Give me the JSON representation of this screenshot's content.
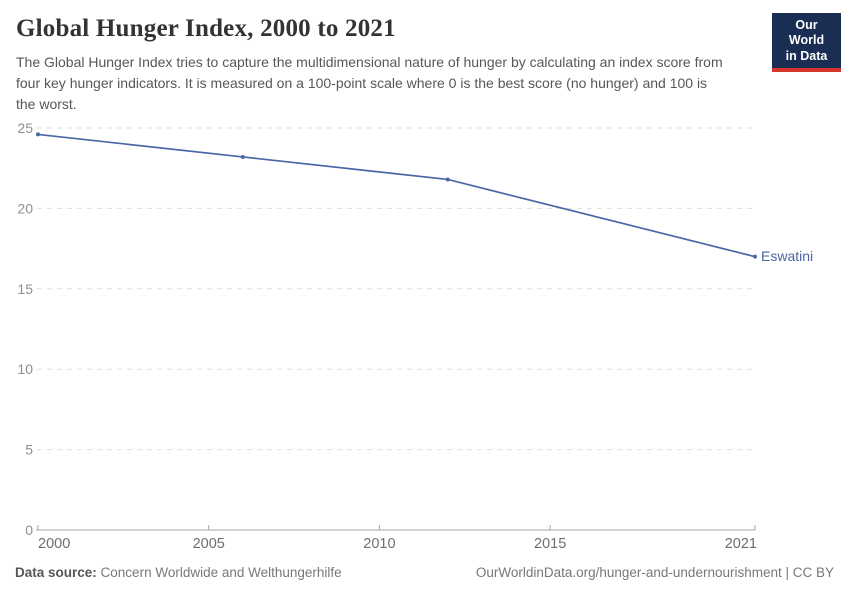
{
  "header": {
    "title": "Global Hunger Index, 2000 to 2021",
    "subtitle": "The Global Hunger Index tries to capture the multidimensional nature of hunger by calculating an index score from four key hunger indicators. It is measured on a 100-point scale where 0 is the best score (no hunger) and 100 is the worst."
  },
  "logo": {
    "line1": "Our World",
    "line2": "in Data",
    "bg_color": "#1a2d52",
    "bar_color": "#d8352c"
  },
  "footer": {
    "source_label": "Data source:",
    "source_value": "Concern Worldwide and Welthungerhilfe",
    "attribution": "OurWorldinData.org/hunger-and-undernourishment | CC BY"
  },
  "chart_data": {
    "type": "line",
    "title": "Global Hunger Index, 2000 to 2021",
    "xlabel": "",
    "ylabel": "",
    "xlim": [
      2000,
      2021
    ],
    "ylim": [
      0,
      25
    ],
    "x_ticks": [
      2000,
      2005,
      2010,
      2015,
      2021
    ],
    "y_ticks": [
      0,
      5,
      10,
      15,
      20,
      25
    ],
    "grid": "horizontal-dashed",
    "legend_position": "end-of-line-label",
    "series": [
      {
        "name": "Eswatini",
        "color": "#4a67a5",
        "points": [
          {
            "x": 2000,
            "y": 24.6
          },
          {
            "x": 2006,
            "y": 23.2
          },
          {
            "x": 2012,
            "y": 21.8
          },
          {
            "x": 2021,
            "y": 17.0
          }
        ]
      }
    ]
  }
}
